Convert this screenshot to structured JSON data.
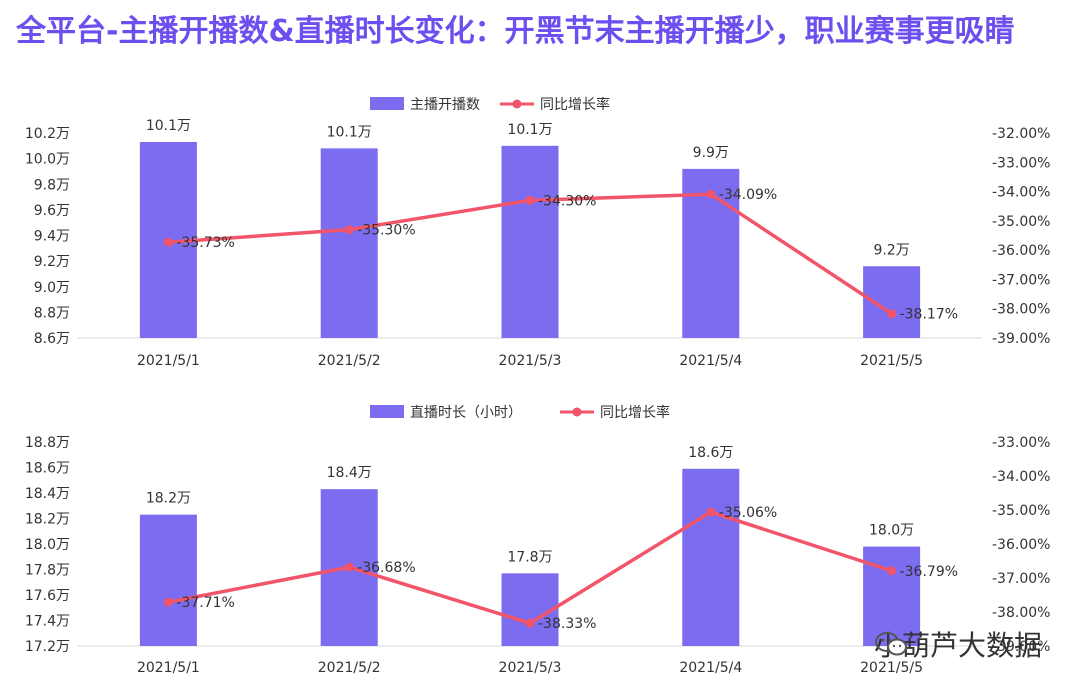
{
  "page": {
    "title": "全平台-主播开播数&直播时长变化：开黑节末主播开播少，职业赛事更吸睛"
  },
  "colors": {
    "bar": "#7b6cf0",
    "line": "#f2546a",
    "axis_text": "#333333",
    "grid": "#e6e6e6"
  },
  "watermark": {
    "text": "小葫芦大数据",
    "icon": "wechat-icon"
  },
  "chart_data": [
    {
      "type": "bar",
      "categories": [
        "2021/5/1",
        "2021/5/2",
        "2021/5/3",
        "2021/5/4",
        "2021/5/5"
      ],
      "series": [
        {
          "name": "主播开播数",
          "type": "bar",
          "values": [
            10.13,
            10.08,
            10.1,
            9.92,
            9.16
          ],
          "labels": [
            "10.1万",
            "10.1万",
            "10.1万",
            "9.9万",
            "9.2万"
          ]
        },
        {
          "name": "同比增长率",
          "type": "line",
          "values": [
            -35.73,
            -35.3,
            -34.3,
            -34.09,
            -38.17
          ],
          "labels": [
            "-35.73%",
            "-35.30%",
            "-34.30%",
            "-34.09%",
            "-38.17%"
          ]
        }
      ],
      "yleft": {
        "min": 8.6,
        "max": 10.2,
        "ticks": [
          "8.6万",
          "8.8万",
          "9.0万",
          "9.2万",
          "9.4万",
          "9.6万",
          "9.8万",
          "10.0万",
          "10.2万"
        ]
      },
      "yright": {
        "min": -39.0,
        "max": -32.0,
        "ticks": [
          "-39.00%",
          "-38.00%",
          "-37.00%",
          "-36.00%",
          "-35.00%",
          "-34.00%",
          "-33.00%",
          "-32.00%"
        ]
      },
      "legend": "top-center",
      "grid": false
    },
    {
      "type": "bar",
      "categories": [
        "2021/5/1",
        "2021/5/2",
        "2021/5/3",
        "2021/5/4",
        "2021/5/5"
      ],
      "series": [
        {
          "name": "直播时长（小时）",
          "type": "bar",
          "values": [
            18.23,
            18.43,
            17.77,
            18.59,
            17.98
          ],
          "labels": [
            "18.2万",
            "18.4万",
            "17.8万",
            "18.6万",
            "18.0万"
          ]
        },
        {
          "name": "同比增长率",
          "type": "line",
          "values": [
            -37.71,
            -36.68,
            -38.33,
            -35.06,
            -36.79
          ],
          "labels": [
            "-37.71%",
            "-36.68%",
            "-38.33%",
            "-35.06%",
            "-36.79%"
          ]
        }
      ],
      "yleft": {
        "min": 17.2,
        "max": 18.8,
        "ticks": [
          "17.2万",
          "17.4万",
          "17.6万",
          "17.8万",
          "18.0万",
          "18.2万",
          "18.4万",
          "18.6万",
          "18.8万"
        ]
      },
      "yright": {
        "min": -39.0,
        "max": -33.0,
        "ticks": [
          "-39.00%",
          "-38.00%",
          "-37.00%",
          "-36.00%",
          "-35.00%",
          "-34.00%",
          "-33.00%"
        ]
      },
      "legend": "top-center",
      "grid": false
    }
  ]
}
